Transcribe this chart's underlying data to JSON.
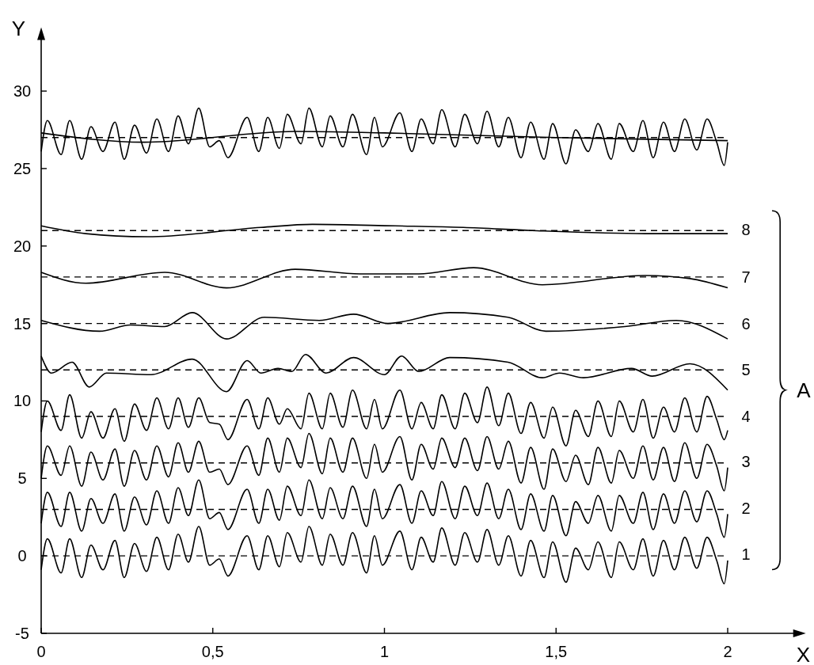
{
  "chart_data": {
    "type": "line",
    "xlabel": "X",
    "ylabel": "Y",
    "xlim": [
      0,
      2.2
    ],
    "ylim": [
      -5,
      33.5
    ],
    "xticks": [
      0,
      {
        "value": 0.5,
        "label": "0,5"
      },
      1,
      {
        "value": 1.5,
        "label": "1,5"
      },
      2
    ],
    "yticks": [
      -5,
      0,
      5,
      10,
      15,
      20,
      25,
      30
    ],
    "annotations": [
      "A"
    ],
    "ref_lines": [
      {
        "axis": "y",
        "value": 0,
        "color": "#000000",
        "line_style": "dashed"
      },
      {
        "axis": "y",
        "value": 3,
        "color": "#000000",
        "line_style": "dashed"
      },
      {
        "axis": "y",
        "value": 6,
        "color": "#000000",
        "line_style": "dashed"
      },
      {
        "axis": "y",
        "value": 9,
        "color": "#000000",
        "line_style": "dashed"
      },
      {
        "axis": "y",
        "value": 12,
        "color": "#000000",
        "line_style": "dashed"
      },
      {
        "axis": "y",
        "value": 15,
        "color": "#000000",
        "line_style": "dashed"
      },
      {
        "axis": "y",
        "value": 18,
        "color": "#000000",
        "line_style": "dashed"
      },
      {
        "axis": "y",
        "value": 21,
        "color": "#000000",
        "line_style": "dashed"
      },
      {
        "axis": "y",
        "value": 27,
        "color": "#000000",
        "line_style": "dashed"
      }
    ],
    "x": [
      0,
      0.018,
      0.058,
      0.083,
      0.118,
      0.145,
      0.18,
      0.215,
      0.242,
      0.272,
      0.307,
      0.337,
      0.371,
      0.399,
      0.429,
      0.459,
      0.491,
      0.519,
      0.544,
      0.6,
      0.634,
      0.66,
      0.694,
      0.717,
      0.757,
      0.78,
      0.819,
      0.842,
      0.879,
      0.907,
      0.948,
      0.971,
      0.994,
      1.045,
      1.08,
      1.107,
      1.142,
      1.167,
      1.206,
      1.234,
      1.271,
      1.299,
      1.333,
      1.361,
      1.398,
      1.426,
      1.465,
      1.49,
      1.529,
      1.557,
      1.594,
      1.622,
      1.661,
      1.684,
      1.725,
      1.753,
      1.783,
      1.813,
      1.845,
      1.875,
      1.91,
      1.94,
      1.968,
      1.99,
      2.0
    ],
    "series": [
      {
        "name": "1",
        "color": "#000000",
        "values": [
          -0.9,
          1.1,
          -1.1,
          1.1,
          -1.4,
          0.7,
          -0.9,
          1.0,
          -1.4,
          0.8,
          -1.0,
          1.2,
          -0.9,
          1.4,
          -0.4,
          1.9,
          -0.6,
          -0.2,
          -1.3,
          1.3,
          -0.9,
          1.3,
          -0.7,
          1.5,
          -0.4,
          1.9,
          -0.6,
          1.4,
          -0.6,
          1.5,
          -1.1,
          1.3,
          -0.6,
          1.6,
          -0.9,
          1.2,
          -0.4,
          1.8,
          -0.6,
          1.5,
          -0.4,
          1.7,
          -0.6,
          1.3,
          -1.3,
          1.0,
          -1.4,
          0.9,
          -1.7,
          0.5,
          -0.9,
          0.9,
          -1.4,
          0.9,
          -0.9,
          1.1,
          -1.3,
          1.0,
          -0.9,
          1.2,
          -0.8,
          1.2,
          -0.3,
          -1.8,
          -0.3
        ]
      },
      {
        "name": "2",
        "color": "#000000",
        "values": [
          2.1,
          4.1,
          1.9,
          4.1,
          1.6,
          3.7,
          2.1,
          4.0,
          1.6,
          3.8,
          2.0,
          4.2,
          2.1,
          4.4,
          2.6,
          4.9,
          2.4,
          2.8,
          1.7,
          4.3,
          2.1,
          4.3,
          2.3,
          4.5,
          2.6,
          4.9,
          2.4,
          4.4,
          2.4,
          4.5,
          1.9,
          4.3,
          2.4,
          4.6,
          2.1,
          4.2,
          2.6,
          4.8,
          2.4,
          4.5,
          2.6,
          4.7,
          2.4,
          4.3,
          1.7,
          4.0,
          1.6,
          3.9,
          1.3,
          3.5,
          2.1,
          3.9,
          1.6,
          3.9,
          2.1,
          4.1,
          1.7,
          4.0,
          2.1,
          4.2,
          2.2,
          4.2,
          2.7,
          1.2,
          2.7
        ]
      },
      {
        "name": "3",
        "color": "#000000",
        "values": [
          5.0,
          7.1,
          5.2,
          7.1,
          4.5,
          6.7,
          4.9,
          6.9,
          4.5,
          6.8,
          4.9,
          7.1,
          5.1,
          7.3,
          5.4,
          7.4,
          5.4,
          5.6,
          4.6,
          7.1,
          5.2,
          7.6,
          5.4,
          7.6,
          5.7,
          7.9,
          5.3,
          7.6,
          5.4,
          7.6,
          5.0,
          7.2,
          5.4,
          7.7,
          4.9,
          7.2,
          5.6,
          7.6,
          5.7,
          7.6,
          5.5,
          7.7,
          5.6,
          7.4,
          4.7,
          7.0,
          4.3,
          6.9,
          4.8,
          6.5,
          4.6,
          7.0,
          4.7,
          6.8,
          5.0,
          7.1,
          4.9,
          7.0,
          4.8,
          7.3,
          5.0,
          7.2,
          5.8,
          4.2,
          5.7
        ]
      },
      {
        "name": "4",
        "color": "#000000",
        "values": [
          8.0,
          10.0,
          8.1,
          10.4,
          7.6,
          9.3,
          7.6,
          9.5,
          7.4,
          9.8,
          8.1,
          10.2,
          8.2,
          10.2,
          8.3,
          10.2,
          8.6,
          8.5,
          7.5,
          10.1,
          8.2,
          10.2,
          8.5,
          9.5,
          8.2,
          10.5,
          8.2,
          10.5,
          8.3,
          10.7,
          8.2,
          10.1,
          8.2,
          10.7,
          8.2,
          9.9,
          8.2,
          10.4,
          8.2,
          10.5,
          8.6,
          10.9,
          8.4,
          10.5,
          7.9,
          9.9,
          7.6,
          9.6,
          7.1,
          9.4,
          7.7,
          10.0,
          7.7,
          10.0,
          8.0,
          10.1,
          7.6,
          9.6,
          8.0,
          10.2,
          8.0,
          10.3,
          8.8,
          7.5,
          8.1
        ]
      },
      {
        "name": "5",
        "color": "#000000",
        "x": [
          0,
          0.03,
          0.09,
          0.14,
          0.19,
          0.32,
          0.44,
          0.54,
          0.6,
          0.64,
          0.69,
          0.73,
          0.77,
          0.83,
          0.91,
          1.0,
          1.05,
          1.1,
          1.19,
          1.36,
          1.46,
          1.51,
          1.58,
          1.72,
          1.78,
          1.89,
          2.0
        ],
        "values": [
          12.9,
          11.8,
          12.5,
          10.9,
          11.8,
          11.7,
          12.7,
          10.6,
          12.6,
          11.8,
          12.1,
          11.9,
          13.0,
          11.8,
          12.8,
          11.7,
          12.9,
          11.9,
          12.8,
          12.5,
          11.5,
          11.8,
          11.5,
          12.1,
          11.6,
          12.4,
          10.7
        ]
      },
      {
        "name": "6",
        "color": "#000000",
        "x": [
          0,
          0.17,
          0.26,
          0.36,
          0.44,
          0.54,
          0.65,
          0.81,
          0.91,
          1.01,
          1.19,
          1.36,
          1.47,
          1.7,
          1.85,
          2.0
        ],
        "values": [
          15.2,
          14.5,
          14.9,
          14.8,
          15.7,
          14.0,
          15.4,
          15.2,
          15.6,
          15.0,
          15.7,
          15.4,
          14.5,
          14.8,
          15.2,
          14.0
        ]
      },
      {
        "name": "7",
        "color": "#000000",
        "x": [
          0,
          0.13,
          0.36,
          0.54,
          0.74,
          0.93,
          1.1,
          1.26,
          1.46,
          1.76,
          1.89,
          2.0
        ],
        "values": [
          18.3,
          17.6,
          18.3,
          17.3,
          18.5,
          18.2,
          18.2,
          18.6,
          17.5,
          18.1,
          17.9,
          17.3
        ]
      },
      {
        "name": "8",
        "color": "#000000",
        "x": [
          0,
          0.13,
          0.31,
          0.64,
          0.79,
          1.03,
          1.23,
          1.43,
          1.76,
          2.0
        ],
        "values": [
          21.3,
          20.8,
          20.6,
          21.2,
          21.4,
          21.3,
          21.2,
          21.0,
          20.8,
          20.8
        ]
      },
      {
        "color": "#000000",
        "values": [
          26.1,
          28.1,
          25.9,
          28.1,
          25.6,
          27.7,
          26.1,
          28.0,
          25.6,
          27.8,
          26.0,
          28.2,
          26.1,
          28.4,
          26.6,
          28.9,
          26.4,
          26.8,
          25.7,
          28.3,
          26.1,
          28.3,
          26.3,
          28.5,
          26.6,
          28.9,
          26.4,
          28.4,
          26.4,
          28.5,
          25.9,
          28.3,
          26.4,
          28.6,
          26.1,
          28.2,
          26.6,
          28.8,
          26.4,
          28.5,
          26.6,
          28.7,
          26.4,
          28.3,
          25.7,
          28.0,
          25.6,
          27.9,
          25.3,
          27.5,
          26.1,
          27.9,
          25.6,
          27.9,
          26.1,
          28.1,
          25.7,
          28.0,
          26.1,
          28.2,
          26.2,
          28.2,
          26.7,
          25.2,
          26.7
        ]
      },
      {
        "color": "#000000",
        "x": [
          0,
          0.3,
          0.74,
          1.0,
          1.5,
          2.0
        ],
        "values": [
          27.3,
          26.7,
          27.4,
          27.3,
          27.0,
          26.8
        ]
      }
    ]
  }
}
